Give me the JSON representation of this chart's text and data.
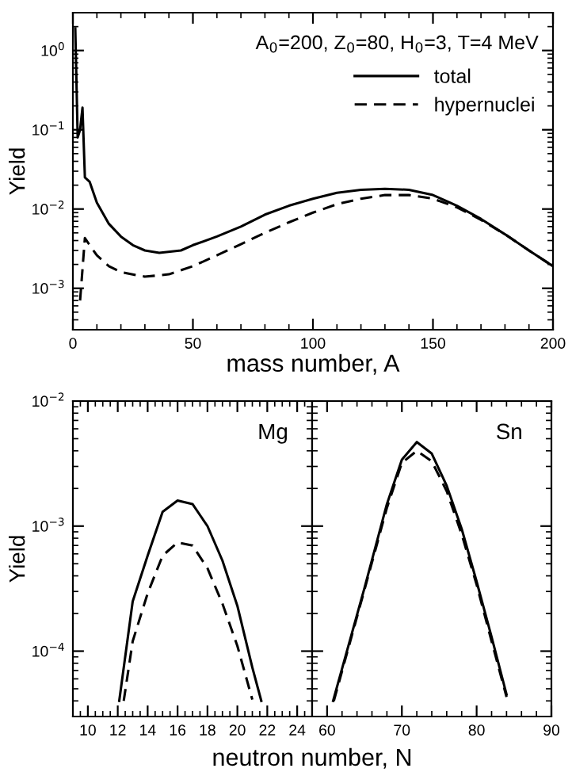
{
  "chart_data": [
    {
      "type": "line",
      "xlabel": "mass number, A",
      "ylabel": "Yield",
      "log": "y",
      "xlim": [
        0,
        200
      ],
      "xticks": [
        0,
        50,
        100,
        150,
        200
      ],
      "ylim": [
        0.0003,
        3
      ],
      "yticks": [
        {
          "value": 0.001,
          "label": "10$^{−3}$"
        },
        {
          "value": 0.01,
          "label": "10$^{−2}$"
        },
        {
          "value": 0.1,
          "label": "10$^{−1}$"
        },
        {
          "value": 1,
          "label": "10$^{0}$"
        }
      ],
      "annotations": [
        "A$_{0}$=200, Z$_{0}$=80, H$_{0}$=3, T=4 MeV"
      ],
      "legend": "top right",
      "grid": false,
      "series": [
        {
          "name": "total",
          "color": "#000000",
          "line_style": "solid",
          "x": [
            1,
            2,
            3,
            4,
            5,
            7,
            10,
            15,
            20,
            25,
            30,
            36,
            45,
            50,
            60,
            70,
            80,
            90,
            100,
            110,
            120,
            130,
            140,
            150,
            160,
            170,
            180,
            190,
            200
          ],
          "values": [
            1.9,
            0.08,
            0.1,
            0.19,
            0.025,
            0.022,
            0.012,
            0.0065,
            0.0045,
            0.0035,
            0.003,
            0.0028,
            0.003,
            0.0035,
            0.0045,
            0.006,
            0.0085,
            0.011,
            0.0135,
            0.016,
            0.0175,
            0.018,
            0.0175,
            0.015,
            0.011,
            0.0075,
            0.0048,
            0.003,
            0.0019
          ]
        },
        {
          "name": "hypernuclei",
          "color": "#000000",
          "line_style": "dashed",
          "x": [
            3,
            5,
            7,
            10,
            15,
            20,
            30,
            40,
            50,
            60,
            70,
            80,
            90,
            100,
            110,
            120,
            130,
            140,
            150,
            160,
            170,
            180,
            190,
            200
          ],
          "values": [
            0.0007,
            0.0043,
            0.0035,
            0.0026,
            0.0019,
            0.0016,
            0.0014,
            0.0015,
            0.0019,
            0.0026,
            0.0036,
            0.005,
            0.0068,
            0.009,
            0.0115,
            0.0135,
            0.015,
            0.015,
            0.0135,
            0.0105,
            0.0073,
            0.0048,
            0.003,
            0.0019
          ]
        }
      ]
    },
    {
      "type": "line",
      "xlabel": "neutron number, N",
      "ylabel": "Yield",
      "log": "y",
      "xlim": [
        9,
        25
      ],
      "xticks": [
        10,
        12,
        14,
        16,
        18,
        20,
        22,
        24
      ],
      "ylim": [
        3e-05,
        0.01
      ],
      "yticks": [
        {
          "value": 0.0001,
          "label": "10$^{−4}$"
        },
        {
          "value": 0.001,
          "label": "10$^{−3}$"
        },
        {
          "value": 0.01,
          "label": "10$^{−2}$"
        }
      ],
      "annotations": [
        "Mg"
      ],
      "grid": false,
      "series": [
        {
          "color": "#000000",
          "line_style": "solid",
          "x": [
            12.1,
            13,
            14,
            15,
            16,
            17,
            18,
            19,
            20,
            21,
            21.6
          ],
          "values": [
            4e-05,
            0.00025,
            0.00058,
            0.0013,
            0.0016,
            0.0015,
            0.001,
            0.00053,
            0.00023,
            7.4e-05,
            4e-05
          ]
        },
        {
          "color": "#000000",
          "line_style": "dashed",
          "x": [
            12.4,
            13,
            14,
            15,
            16,
            17,
            18,
            19,
            20,
            21
          ],
          "values": [
            4e-05,
            0.00012,
            0.00029,
            0.00058,
            0.00074,
            0.0007,
            0.00046,
            0.00024,
            0.00011,
            4.1e-05
          ]
        }
      ]
    },
    {
      "type": "line",
      "log": "y",
      "xlim": [
        58,
        90
      ],
      "xticks": [
        60,
        70,
        80,
        90
      ],
      "ylim": [
        3e-05,
        0.01
      ],
      "tick_labels": "x",
      "annotations": [
        "Sn"
      ],
      "grid": false,
      "series": [
        {
          "color": "#000000",
          "line_style": "solid",
          "x": [
            60.8,
            65,
            68,
            70,
            72,
            74,
            76,
            78,
            80,
            82,
            84
          ],
          "values": [
            4e-05,
            0.00032,
            0.0015,
            0.0034,
            0.0047,
            0.0038,
            0.0021,
            0.00095,
            0.00036,
            0.00013,
            4.5e-05
          ]
        },
        {
          "color": "#000000",
          "line_style": "dashed",
          "x": [
            60.9,
            65,
            68,
            70,
            72,
            74,
            76,
            78,
            80,
            82,
            84
          ],
          "values": [
            4e-05,
            0.00031,
            0.0014,
            0.0032,
            0.004,
            0.0033,
            0.0019,
            0.00086,
            0.00034,
            0.00012,
            4.3e-05
          ]
        }
      ]
    }
  ]
}
